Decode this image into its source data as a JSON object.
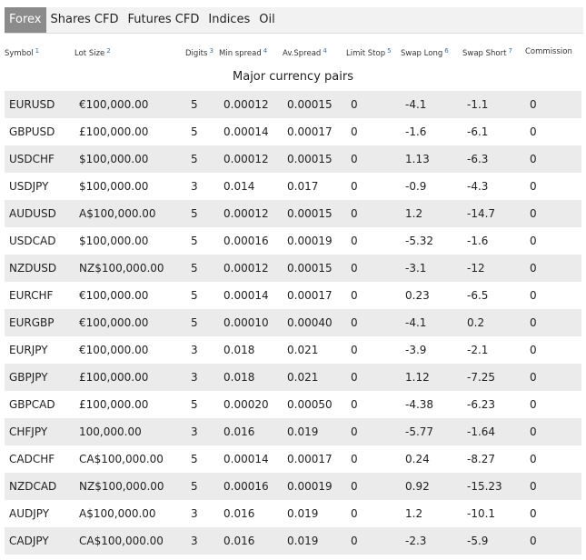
{
  "tabs": [
    {
      "label": "Forex",
      "active": true
    },
    {
      "label": "Shares CFD",
      "active": false
    },
    {
      "label": "Futures CFD",
      "active": false
    },
    {
      "label": "Indices",
      "active": false
    },
    {
      "label": "Oil",
      "active": false
    }
  ],
  "columns": [
    {
      "label": "Symbol",
      "note": "1"
    },
    {
      "label": "Lot Size",
      "note": "2"
    },
    {
      "label": "Digits",
      "note": "3"
    },
    {
      "label": "Min spread",
      "note": "4"
    },
    {
      "label": "Av.Spread",
      "note": "4"
    },
    {
      "label": "Limit Stop",
      "note": "5"
    },
    {
      "label": "Swap Long",
      "note": "6"
    },
    {
      "label": "Swap Short",
      "note": "7"
    },
    {
      "label": "Commission",
      "note": ""
    }
  ],
  "section_title": "Major currency pairs",
  "rows": [
    [
      "EURUSD",
      "€100,000.00",
      "5",
      "0.00012",
      "0.00015",
      "0",
      "-4.1",
      "-1.1",
      "0"
    ],
    [
      "GBPUSD",
      "£100,000.00",
      "5",
      "0.00014",
      "0.00017",
      "0",
      "-1.6",
      "-6.1",
      "0"
    ],
    [
      "USDCHF",
      "$100,000.00",
      "5",
      "0.00012",
      "0.00015",
      "0",
      "1.13",
      "-6.3",
      "0"
    ],
    [
      "USDJPY",
      "$100,000.00",
      "3",
      "0.014",
      "0.017",
      "0",
      "-0.9",
      "-4.3",
      "0"
    ],
    [
      "AUDUSD",
      "A$100,000.00",
      "5",
      "0.00012",
      "0.00015",
      "0",
      "1.2",
      "-14.7",
      "0"
    ],
    [
      "USDCAD",
      "$100,000.00",
      "5",
      "0.00016",
      "0.00019",
      "0",
      "-5.32",
      "-1.6",
      "0"
    ],
    [
      "NZDUSD",
      "NZ$100,000.00",
      "5",
      "0.00012",
      "0.00015",
      "0",
      "-3.1",
      "-12",
      "0"
    ],
    [
      "EURCHF",
      "€100,000.00",
      "5",
      "0.00014",
      "0.00017",
      "0",
      "0.23",
      "-6.5",
      "0"
    ],
    [
      "EURGBP",
      "€100,000.00",
      "5",
      "0.00010",
      "0.00040",
      "0",
      "-4.1",
      "0.2",
      "0"
    ],
    [
      "EURJPY",
      "€100,000.00",
      "3",
      "0.018",
      "0.021",
      "0",
      "-3.9",
      "-2.1",
      "0"
    ],
    [
      "GBPJPY",
      "£100,000.00",
      "3",
      "0.018",
      "0.021",
      "0",
      "1.12",
      "-7.25",
      "0"
    ],
    [
      "GBPCAD",
      "£100,000.00",
      "5",
      "0.00020",
      "0.00050",
      "0",
      "-4.38",
      "-6.23",
      "0"
    ],
    [
      "CHFJPY",
      "100,000.00",
      "3",
      "0.016",
      "0.019",
      "0",
      "-5.77",
      "-1.64",
      "0"
    ],
    [
      "CADCHF",
      "CA$100,000.00",
      "5",
      "0.00014",
      "0.00017",
      "0",
      "0.24",
      "-8.27",
      "0"
    ],
    [
      "NZDCAD",
      "NZ$100,000.00",
      "5",
      "0.00016",
      "0.00019",
      "0",
      "0.92",
      "-15.23",
      "0"
    ],
    [
      "AUDJPY",
      "A$100,000.00",
      "3",
      "0.016",
      "0.019",
      "0",
      "1.2",
      "-10.1",
      "0"
    ],
    [
      "CADJPY",
      "CA$100,000.00",
      "3",
      "0.016",
      "0.019",
      "0",
      "-2.3",
      "-5.9",
      "0"
    ]
  ]
}
